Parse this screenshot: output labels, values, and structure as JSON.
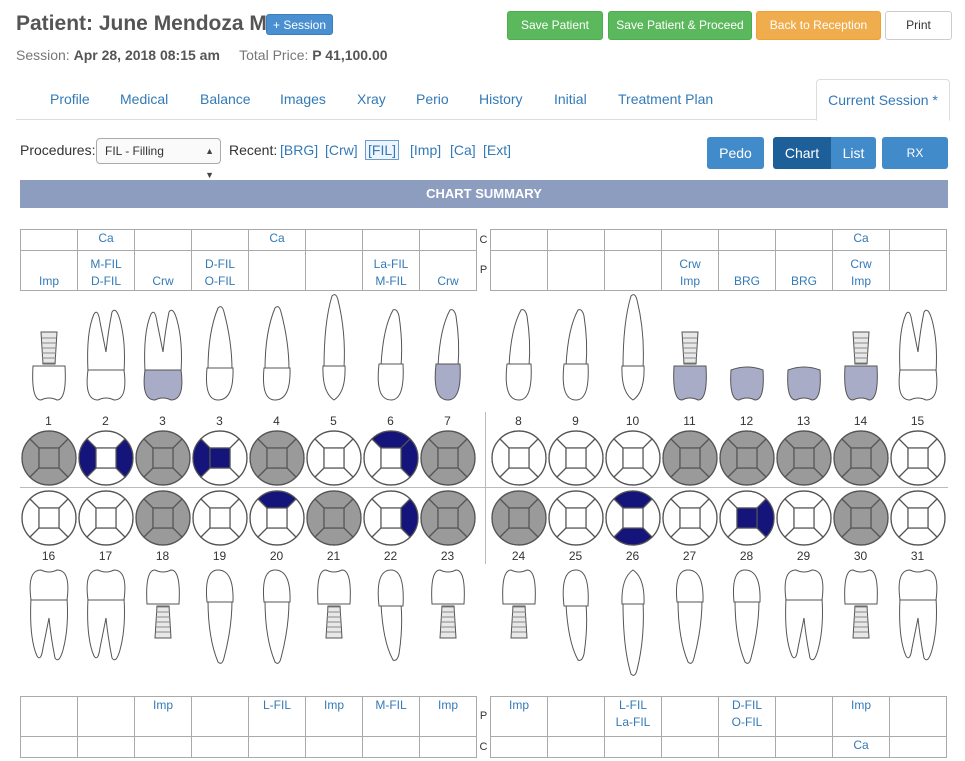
{
  "header": {
    "title": "Patient: June Mendoza M",
    "session_button": "+ Session",
    "session_label": "Session:",
    "session_value": "Apr 28, 2018 08:15 am",
    "total_label": "Total Price:",
    "total_value": "P 41,100.00",
    "buttons": {
      "save": "Save Patient",
      "save_proceed": "Save Patient & Proceed",
      "back": "Back to Reception",
      "print": "Print"
    }
  },
  "tabs": [
    "Profile",
    "Medical",
    "Balance",
    "Images",
    "Xray",
    "Perio",
    "History",
    "Initial",
    "Treatment Plan",
    "Current Session *"
  ],
  "procedures": {
    "label": "Procedures:",
    "selected": "FIL - Filling",
    "recent_label": "Recent:",
    "recent": [
      "[BRG]",
      "[Crw]",
      "[FIL]",
      "[Imp]",
      "[Ca]",
      "[Ext]"
    ]
  },
  "view_buttons": {
    "pedo": "Pedo",
    "chart": "Chart",
    "list": "List",
    "rx": "RX"
  },
  "summary_title": "CHART SUMMARY",
  "row_labels": {
    "c": "C",
    "p": "P"
  },
  "upper_c": [
    "",
    "Ca",
    "",
    "",
    "Ca",
    "",
    "",
    "",
    "",
    "",
    "",
    "",
    "",
    "",
    "Ca",
    ""
  ],
  "upper_p": [
    [
      "Imp"
    ],
    [
      "M-FIL",
      "D-FIL"
    ],
    [
      "Crw"
    ],
    [
      "D-FIL",
      "O-FIL"
    ],
    [
      ""
    ],
    [
      ""
    ],
    [
      "La-FIL",
      "M-FIL"
    ],
    [
      "Crw"
    ],
    [
      ""
    ],
    [
      ""
    ],
    [
      ""
    ],
    [
      "Crw",
      "Imp"
    ],
    [
      "BRG"
    ],
    [
      "BRG"
    ],
    [
      "Crw",
      "Imp"
    ],
    [
      ""
    ]
  ],
  "lower_p": [
    [
      ""
    ],
    [
      ""
    ],
    [
      "Imp"
    ],
    [
      ""
    ],
    [
      "L-FIL"
    ],
    [
      "Imp"
    ],
    [
      "M-FIL"
    ],
    [
      "Imp"
    ],
    [
      "Imp"
    ],
    [
      ""
    ],
    [
      "L-FIL",
      "La-FIL"
    ],
    [
      ""
    ],
    [
      "D-FIL",
      "O-FIL"
    ],
    [
      ""
    ],
    [
      "Imp"
    ],
    [
      ""
    ]
  ],
  "lower_c": [
    "",
    "",
    "",
    "",
    "",
    "",
    "",
    "",
    "",
    "",
    "",
    "",
    "",
    "",
    "Ca",
    ""
  ],
  "upper_numbers": [
    "1",
    "2",
    "3",
    "3",
    "4",
    "5",
    "6",
    "7",
    "8",
    "9",
    "10",
    "11",
    "12",
    "13",
    "14",
    "15"
  ],
  "lower_numbers": [
    "16",
    "17",
    "18",
    "19",
    "20",
    "21",
    "22",
    "23",
    "24",
    "25",
    "26",
    "27",
    "28",
    "29",
    "30",
    "31"
  ],
  "colors": {
    "missing": "#9a9a9a",
    "filled": "#14147a",
    "crown": "#a9acc6",
    "link": "#337ab7"
  },
  "upper_surfaces": [
    {
      "missing": true,
      "filled": []
    },
    {
      "missing": false,
      "filled": [
        "left",
        "right"
      ]
    },
    {
      "missing": true,
      "filled": []
    },
    {
      "missing": false,
      "filled": [
        "left",
        "center"
      ]
    },
    {
      "missing": true,
      "filled": []
    },
    {
      "missing": false,
      "filled": []
    },
    {
      "missing": false,
      "filled": [
        "top",
        "right"
      ]
    },
    {
      "missing": true,
      "filled": []
    },
    {
      "missing": false,
      "filled": []
    },
    {
      "missing": false,
      "filled": []
    },
    {
      "missing": false,
      "filled": []
    },
    {
      "missing": true,
      "filled": []
    },
    {
      "missing": true,
      "filled": []
    },
    {
      "missing": true,
      "filled": []
    },
    {
      "missing": true,
      "filled": []
    },
    {
      "missing": false,
      "filled": []
    }
  ],
  "lower_surfaces": [
    {
      "missing": false,
      "filled": []
    },
    {
      "missing": false,
      "filled": []
    },
    {
      "missing": true,
      "filled": []
    },
    {
      "missing": false,
      "filled": []
    },
    {
      "missing": false,
      "filled": [
        "top"
      ]
    },
    {
      "missing": true,
      "filled": []
    },
    {
      "missing": false,
      "filled": [
        "right"
      ]
    },
    {
      "missing": true,
      "filled": []
    },
    {
      "missing": true,
      "filled": []
    },
    {
      "missing": false,
      "filled": []
    },
    {
      "missing": false,
      "filled": [
        "top",
        "bottom"
      ]
    },
    {
      "missing": false,
      "filled": []
    },
    {
      "missing": false,
      "filled": [
        "center",
        "right"
      ]
    },
    {
      "missing": false,
      "filled": []
    },
    {
      "missing": true,
      "filled": []
    },
    {
      "missing": false,
      "filled": []
    }
  ],
  "upper_teeth": [
    "implant",
    "molar",
    "molar-crown",
    "premolar",
    "premolar",
    "canine",
    "incisor",
    "incisor-crown",
    "incisor",
    "incisor",
    "canine",
    "implant-crown",
    "crown-stub",
    "crown-stub",
    "implant-crown",
    "molar"
  ],
  "lower_teeth": [
    "molar-l",
    "molar-l",
    "implant-l",
    "premolar-l",
    "premolar-l",
    "implant-l",
    "incisor-l",
    "implant-l",
    "implant-l",
    "incisor-l",
    "canine-l",
    "premolar-l",
    "premolar-l",
    "molar-l",
    "implant-l",
    "molar-l"
  ]
}
